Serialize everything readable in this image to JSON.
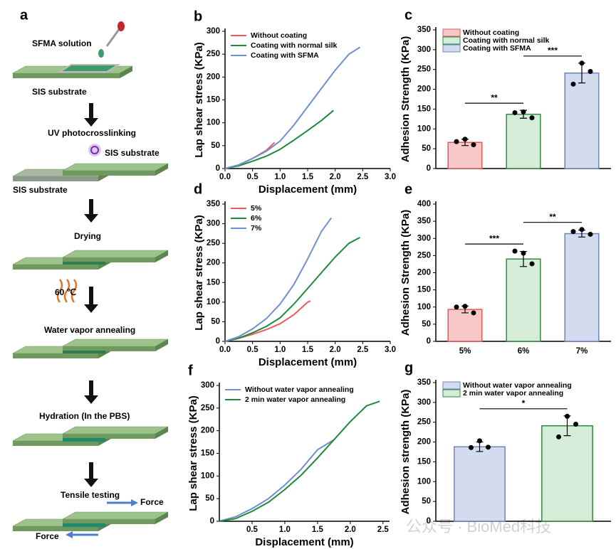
{
  "diagram": {
    "texts": [
      "a",
      "SFMA solution",
      "SIS substrate",
      "UV photocrosslinking",
      "SIS substrate",
      "SIS substrate",
      "Drying",
      "60 ℃",
      "Water vapor annealing",
      "Hydration (In  the PBS)",
      "Tensile testing",
      "Force",
      "Force"
    ]
  },
  "watermark": "公众号 · BioMed科技",
  "chart_data": [
    {
      "type": "line",
      "label": "b",
      "xlabel": "Displacement (mm)",
      "ylabel": "Lap shear stress (KPa)",
      "xlim": [
        0,
        3
      ],
      "ylim": [
        0,
        300
      ],
      "xticks": [
        {
          "value": 0,
          "label": "0.0"
        },
        0.5,
        {
          "value": 1,
          "label": "1.0"
        },
        1.5,
        {
          "value": 2,
          "label": "2.0"
        },
        2.5,
        {
          "value": 3,
          "label": "3.0"
        }
      ],
      "yticks": [
        0,
        50,
        100,
        150,
        200,
        250,
        300
      ],
      "series": [
        {
          "name": "Without coating",
          "color": "#f05a5a",
          "x": [
            0,
            0.25,
            0.5,
            0.75,
            0.9
          ],
          "values": [
            0,
            8,
            22,
            40,
            57
          ]
        },
        {
          "name": "Coating with normal silk",
          "color": "#1f8a3a",
          "x": [
            0,
            0.25,
            0.5,
            0.75,
            1,
            1.25,
            1.5,
            1.75,
            1.97
          ],
          "values": [
            0,
            6,
            16,
            27,
            42,
            62,
            83,
            105,
            127
          ]
        },
        {
          "name": "Coating with SFMA",
          "color": "#6f8fcf",
          "x": [
            0,
            0.25,
            0.5,
            0.75,
            1,
            1.25,
            1.5,
            1.75,
            2,
            2.25,
            2.45
          ],
          "values": [
            0,
            8,
            22,
            38,
            60,
            95,
            135,
            175,
            215,
            250,
            265
          ]
        }
      ]
    },
    {
      "type": "bar",
      "label": "c",
      "ylabel": "Adhesion Strength (KPa)",
      "ylim": [
        0,
        350
      ],
      "yticks": [
        0,
        50,
        100,
        150,
        200,
        250,
        300,
        350
      ],
      "categories": [
        null,
        null,
        null
      ],
      "legend": [
        "Without coating",
        "Coating with normal silk",
        "Coating with SFMA"
      ],
      "values": [
        66,
        137,
        241
      ],
      "errors": [
        8,
        10,
        25
      ],
      "points": [
        [
          68,
          74,
          60
        ],
        [
          141,
          143,
          128
        ],
        [
          213,
          266,
          245
        ]
      ],
      "colors": [
        "#e05a5a",
        "#2e8b3e",
        "#6d84c0"
      ],
      "fills": [
        "#f8c8c8",
        "#d5ecd8",
        "#d3dbee"
      ],
      "significance": [
        {
          "between": [
            0,
            1
          ],
          "label": "**"
        },
        {
          "between": [
            1,
            2
          ],
          "label": "***"
        }
      ]
    },
    {
      "type": "line",
      "label": "d",
      "xlabel": "Displacement (mm)",
      "ylabel": "Lap shear stress (KPa)",
      "xlim": [
        0,
        3
      ],
      "ylim": [
        0,
        350
      ],
      "xticks": [
        {
          "value": 0,
          "label": "0.0"
        },
        0.5,
        {
          "value": 1,
          "label": "1.0"
        },
        1.5,
        {
          "value": 2,
          "label": "2.0"
        },
        2.5,
        {
          "value": 3,
          "label": "3.0"
        }
      ],
      "yticks": [
        0,
        50,
        100,
        150,
        200,
        250,
        300,
        350
      ],
      "series": [
        {
          "name": "5%",
          "color": "#f05a5a",
          "x": [
            0,
            0.25,
            0.5,
            0.75,
            1,
            1.25,
            1.5,
            1.55
          ],
          "values": [
            0,
            8,
            18,
            30,
            45,
            68,
            100,
            103
          ]
        },
        {
          "name": "6%",
          "color": "#1f8a3a",
          "x": [
            0,
            0.25,
            0.5,
            0.75,
            1,
            1.25,
            1.5,
            1.75,
            2,
            2.25,
            2.45
          ],
          "values": [
            0,
            8,
            22,
            38,
            60,
            95,
            135,
            175,
            215,
            250,
            265
          ]
        },
        {
          "name": "7%",
          "color": "#6f8fcf",
          "x": [
            0,
            0.25,
            0.5,
            0.75,
            1,
            1.25,
            1.5,
            1.75,
            1.93
          ],
          "values": [
            0,
            12,
            32,
            58,
            95,
            145,
            210,
            280,
            315
          ]
        }
      ]
    },
    {
      "type": "bar",
      "label": "e",
      "ylabel": "Adhesion Strength (KPa)",
      "ylim": [
        0,
        400
      ],
      "yticks": [
        0,
        50,
        100,
        150,
        200,
        250,
        300,
        350,
        400
      ],
      "categories": [
        "5%",
        "6%",
        "7%"
      ],
      "values": [
        93,
        240,
        314
      ],
      "errors": [
        10,
        22,
        10
      ],
      "points": [
        [
          100,
          102,
          83
        ],
        [
          263,
          257,
          226
        ],
        [
          320,
          326,
          312
        ]
      ],
      "colors": [
        "#e05a5a",
        "#2e8b3e",
        "#6d84c0"
      ],
      "fills": [
        "#f8c8c8",
        "#d5ecd8",
        "#d3dbee"
      ],
      "significance": [
        {
          "between": [
            0,
            1
          ],
          "label": "***"
        },
        {
          "between": [
            1,
            2
          ],
          "label": "**"
        }
      ]
    },
    {
      "type": "line",
      "label": "f",
      "xlabel": "Displacement (mm)",
      "ylabel": "Lap shear stress (KPa)",
      "xlim": [
        0,
        2.6
      ],
      "ylim": [
        0,
        300
      ],
      "xticks": [
        0.5,
        {
          "value": 1,
          "label": "1.0"
        },
        1.5,
        {
          "value": 2,
          "label": "2.0"
        },
        2.5
      ],
      "yticks": [
        0,
        50,
        100,
        150,
        200,
        250,
        300
      ],
      "series": [
        {
          "name": "Without water vapor annealing",
          "color": "#6f8fcf",
          "x": [
            0,
            0.25,
            0.5,
            0.75,
            1,
            1.25,
            1.5,
            1.75
          ],
          "values": [
            0,
            10,
            28,
            50,
            80,
            115,
            158,
            180
          ]
        },
        {
          "name": "2 min water vapor annealing",
          "color": "#1f8a3a",
          "x": [
            0,
            0.25,
            0.5,
            0.75,
            1,
            1.25,
            1.5,
            1.75,
            2,
            2.25,
            2.45
          ],
          "values": [
            0,
            6,
            22,
            42,
            70,
            102,
            140,
            180,
            220,
            255,
            265
          ]
        }
      ]
    },
    {
      "type": "bar",
      "label": "g",
      "ylabel": "Adhesion strength  (KPa)",
      "ylim": [
        0,
        350
      ],
      "yticks": [
        0,
        50,
        100,
        150,
        200,
        250,
        300,
        350
      ],
      "categories": [
        null,
        null
      ],
      "legend": [
        "Without water vapor annealing",
        "2 min water vapor annealing"
      ],
      "values": [
        188,
        241
      ],
      "errors": [
        12,
        25
      ],
      "points": [
        [
          186,
          203,
          187
        ],
        [
          213,
          265,
          245
        ]
      ],
      "colors": [
        "#6d84c0",
        "#2e8b3e"
      ],
      "fills": [
        "#d3dbee",
        "#d5ecd8"
      ],
      "significance": [
        {
          "between": [
            0,
            1
          ],
          "label": "*"
        }
      ]
    }
  ]
}
